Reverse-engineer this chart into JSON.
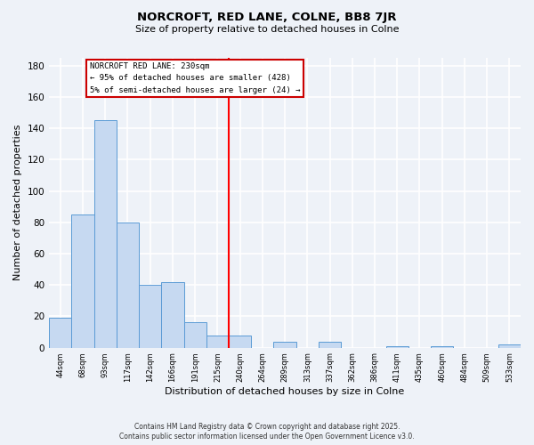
{
  "title": "NORCROFT, RED LANE, COLNE, BB8 7JR",
  "subtitle": "Size of property relative to detached houses in Colne",
  "xlabel": "Distribution of detached houses by size in Colne",
  "ylabel": "Number of detached properties",
  "bin_labels": [
    "44sqm",
    "68sqm",
    "93sqm",
    "117sqm",
    "142sqm",
    "166sqm",
    "191sqm",
    "215sqm",
    "240sqm",
    "264sqm",
    "289sqm",
    "313sqm",
    "337sqm",
    "362sqm",
    "386sqm",
    "411sqm",
    "435sqm",
    "460sqm",
    "484sqm",
    "509sqm",
    "533sqm"
  ],
  "bar_values": [
    19,
    85,
    145,
    80,
    40,
    42,
    16,
    8,
    8,
    0,
    4,
    0,
    4,
    0,
    0,
    1,
    0,
    1,
    0,
    0,
    2
  ],
  "bar_color": "#c6d9f1",
  "bar_edge_color": "#5b9bd5",
  "vline_x": 7.5,
  "vline_color": "#ff0000",
  "annotation_title": "NORCROFT RED LANE: 230sqm",
  "annotation_line1": "← 95% of detached houses are smaller (428)",
  "annotation_line2": "5% of semi-detached houses are larger (24) →",
  "ylim": [
    0,
    185
  ],
  "yticks": [
    0,
    20,
    40,
    60,
    80,
    100,
    120,
    140,
    160,
    180
  ],
  "footer1": "Contains HM Land Registry data © Crown copyright and database right 2025.",
  "footer2": "Contains public sector information licensed under the Open Government Licence v3.0.",
  "background_color": "#eef2f8",
  "grid_color": "#ffffff"
}
